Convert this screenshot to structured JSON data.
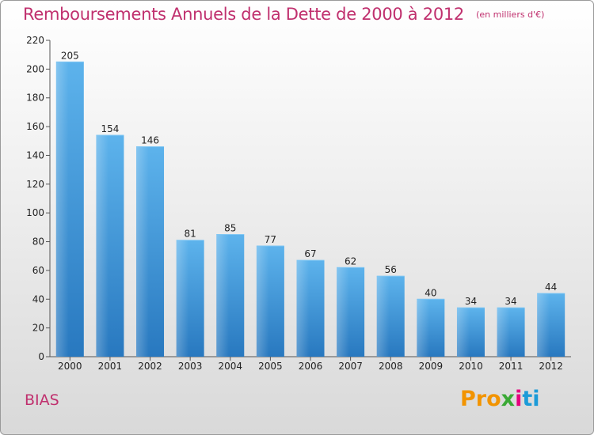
{
  "chart_data": {
    "type": "bar",
    "title": "Remboursements Annuels de la Dette de 2000 à 2012",
    "subtitle": "(en milliers d'€)",
    "categories": [
      "2000",
      "2001",
      "2002",
      "2003",
      "2004",
      "2005",
      "2006",
      "2007",
      "2008",
      "2009",
      "2010",
      "2011",
      "2012"
    ],
    "values": [
      205,
      154,
      146,
      81,
      85,
      77,
      67,
      62,
      56,
      40,
      34,
      34,
      44
    ],
    "ylim": [
      0,
      220
    ],
    "yticks": [
      0,
      20,
      40,
      60,
      80,
      100,
      120,
      140,
      160,
      180,
      200,
      220
    ],
    "grid": false,
    "bar_color": "#4a9fe0"
  },
  "footer": {
    "commune": "BIAS",
    "logo": [
      "Pro",
      "x",
      "i",
      "ti"
    ]
  }
}
